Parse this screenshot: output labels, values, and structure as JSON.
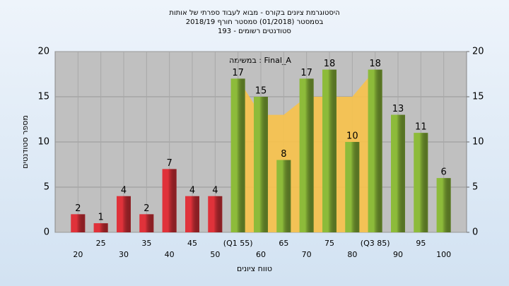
{
  "chart_data": {
    "type": "bar",
    "title": "היסטוגרמת ציונים בקורס - מבוא לעבוד ספרתי של אותות",
    "subtitle": "בסמסטר (01/2018) סמסטר חורף 2018/19",
    "subtitle2": "193 - סטודנטים רשומים",
    "annotation": "במשימה : Final_A",
    "x_label": "טווח ציונים",
    "y_label": "מספר סטודנטים",
    "categories": [
      "20",
      "25",
      "30",
      "35",
      "40",
      "45",
      "50",
      "(Q1 55)",
      "60",
      "65",
      "70",
      "75",
      "80",
      "(Q3 85)",
      "90",
      "95",
      "100"
    ],
    "values": [
      2,
      1,
      4,
      2,
      7,
      4,
      4,
      17,
      15,
      8,
      17,
      18,
      10,
      18,
      13,
      11,
      6
    ],
    "colors": [
      "#e0323a",
      "#e0323a",
      "#e0323a",
      "#e0323a",
      "#e0323a",
      "#e0323a",
      "#e0323a",
      "#8dbb3a",
      "#8dbb3a",
      "#8dbb3a",
      "#8dbb3a",
      "#8dbb3a",
      "#8dbb3a",
      "#8dbb3a",
      "#8dbb3a",
      "#8dbb3a",
      "#8dbb3a"
    ],
    "area_values": [
      null,
      null,
      null,
      null,
      null,
      null,
      null,
      17,
      13,
      13,
      15,
      15,
      15,
      18,
      null,
      null,
      null
    ],
    "area_color": "#f8c24a",
    "ylim": [
      0,
      20
    ],
    "yticks": [
      0,
      5,
      10,
      15,
      20
    ],
    "y2lim": [
      0,
      20
    ],
    "y2ticks": [
      0,
      5,
      10,
      15,
      20
    ],
    "grid": true
  }
}
